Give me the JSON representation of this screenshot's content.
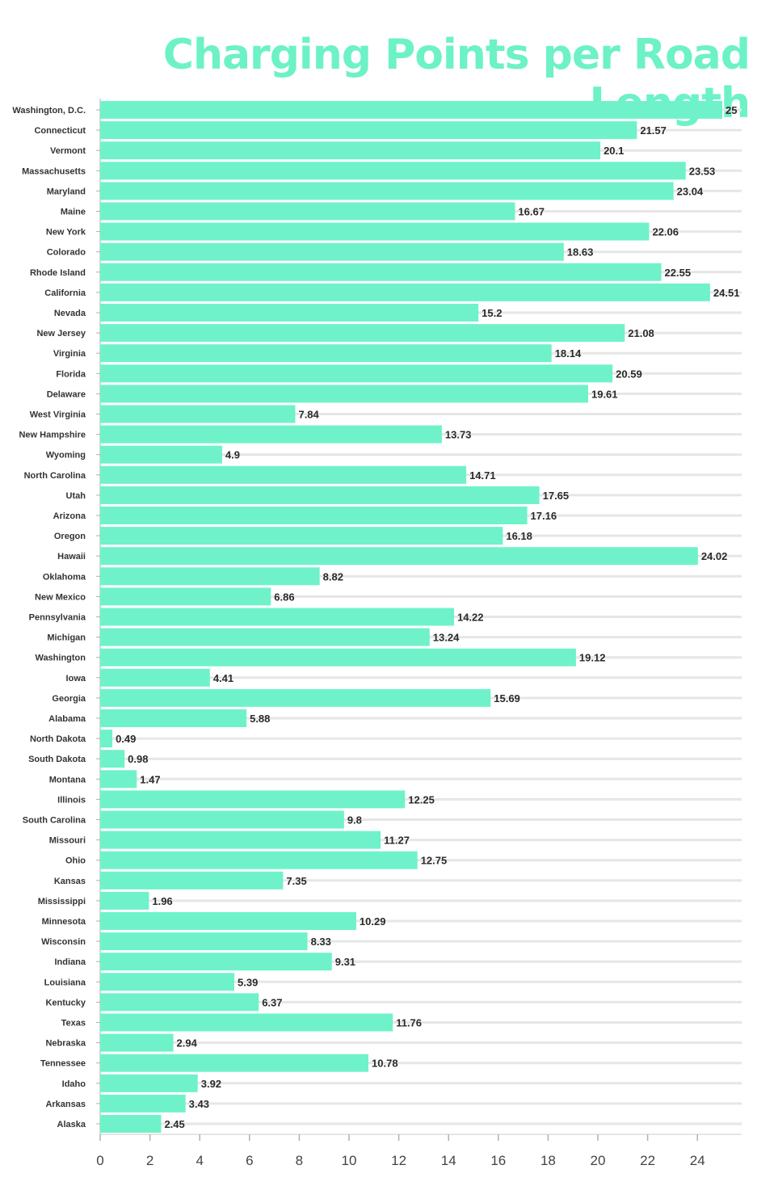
{
  "title": "Charging Points per Road Length",
  "colors": {
    "bar": "#6ff2c9",
    "title": "#6cf2c6",
    "grid": "#e6e6e6",
    "axis": "#b0b0b0"
  },
  "chart_data": {
    "type": "bar",
    "orientation": "horizontal",
    "title": "Charging Points per Road Length",
    "xlabel": "",
    "ylabel": "",
    "xlim": [
      0,
      25
    ],
    "x_ticks": [
      "0",
      "2",
      "4",
      "6",
      "8",
      "10",
      "12",
      "14",
      "16",
      "18",
      "20",
      "22",
      "24"
    ],
    "grid": true,
    "categories": [
      "Washington, D.C.",
      "Connecticut",
      "Vermont",
      "Massachusetts",
      "Maryland",
      "Maine",
      "New York",
      "Colorado",
      "Rhode Island",
      "California",
      "Nevada",
      "New Jersey",
      "Virginia",
      "Florida",
      "Delaware",
      "West Virginia",
      "New Hampshire",
      "Wyoming",
      "North Carolina",
      "Utah",
      "Arizona",
      "Oregon",
      "Hawaii",
      "Oklahoma",
      "New Mexico",
      "Pennsylvania",
      "Michigan",
      "Washington",
      "Iowa",
      "Georgia",
      "Alabama",
      "North Dakota",
      "South Dakota",
      "Montana",
      "Illinois",
      "South Carolina",
      "Missouri",
      "Ohio",
      "Kansas",
      "Mississippi",
      "Minnesota",
      "Wisconsin",
      "Indiana",
      "Louisiana",
      "Kentucky",
      "Texas",
      "Nebraska",
      "Tennessee",
      "Idaho",
      "Arkansas",
      "Alaska"
    ],
    "values": [
      25,
      21.57,
      20.1,
      23.53,
      23.04,
      16.67,
      22.06,
      18.63,
      22.55,
      24.51,
      15.2,
      21.08,
      18.14,
      20.59,
      19.61,
      7.84,
      13.73,
      4.9,
      14.71,
      17.65,
      17.16,
      16.18,
      24.02,
      8.82,
      6.86,
      14.22,
      13.24,
      19.12,
      4.41,
      15.69,
      5.88,
      0.49,
      0.98,
      1.47,
      12.25,
      9.8,
      11.27,
      12.75,
      7.35,
      1.96,
      10.29,
      8.33,
      9.31,
      5.39,
      6.37,
      11.76,
      2.94,
      10.78,
      3.92,
      3.43,
      2.45
    ],
    "value_labels": [
      "25",
      "21.57",
      "20.1",
      "23.53",
      "23.04",
      "16.67",
      "22.06",
      "18.63",
      "22.55",
      "24.51",
      "15.2",
      "21.08",
      "18.14",
      "20.59",
      "19.61",
      "7.84",
      "13.73",
      "4.9",
      "14.71",
      "17.65",
      "17.16",
      "16.18",
      "24.02",
      "8.82",
      "6.86",
      "14.22",
      "13.24",
      "19.12",
      "4.41",
      "15.69",
      "5.88",
      "0.49",
      "0.98",
      "1.47",
      "12.25",
      "9.8",
      "11.27",
      "12.75",
      "7.35",
      "1.96",
      "10.29",
      "8.33",
      "9.31",
      "5.39",
      "6.37",
      "11.76",
      "2.94",
      "10.78",
      "3.92",
      "3.43",
      "2.45"
    ]
  }
}
